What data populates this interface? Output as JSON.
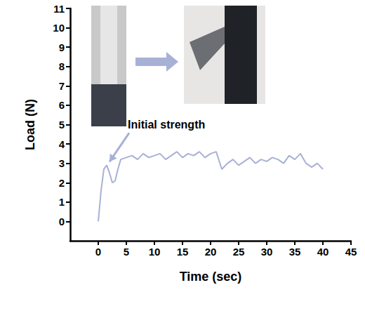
{
  "chart_data": {
    "type": "line",
    "x_label": "Time (sec)",
    "y_label": "Load (N)",
    "x": [
      0,
      0.5,
      1,
      1.5,
      2,
      2.5,
      3,
      3.5,
      4,
      5,
      6,
      7,
      8,
      9,
      10,
      11,
      12,
      13,
      14,
      15,
      16,
      17,
      18,
      19,
      20,
      21,
      22,
      23,
      24,
      25,
      26,
      27,
      28,
      29,
      30,
      31,
      32,
      33,
      34,
      35,
      36,
      37,
      38,
      39,
      40
    ],
    "values": [
      0,
      1.6,
      2.7,
      2.9,
      2.5,
      2.0,
      2.1,
      2.7,
      3.2,
      3.3,
      3.4,
      3.2,
      3.5,
      3.3,
      3.4,
      3.5,
      3.2,
      3.4,
      3.6,
      3.3,
      3.5,
      3.4,
      3.6,
      3.3,
      3.5,
      3.6,
      2.7,
      3.0,
      3.2,
      2.9,
      3.1,
      3.3,
      3.0,
      3.2,
      3.1,
      3.3,
      3.2,
      3.0,
      3.4,
      3.2,
      3.5,
      3.0,
      2.8,
      3.0,
      2.7
    ],
    "color": "#a7b1d6",
    "xlim": [
      -5,
      45
    ],
    "xticks": [
      0,
      5,
      10,
      15,
      20,
      25,
      30,
      35,
      40,
      45
    ],
    "ylim": [
      -1,
      11
    ],
    "yticks": [
      0,
      1,
      2,
      3,
      4,
      5,
      6,
      7,
      8,
      9,
      10,
      11
    ],
    "annotations": [
      {
        "text": "Initial strength",
        "x": 1.5,
        "y": 2.9
      }
    ],
    "grid": false
  }
}
